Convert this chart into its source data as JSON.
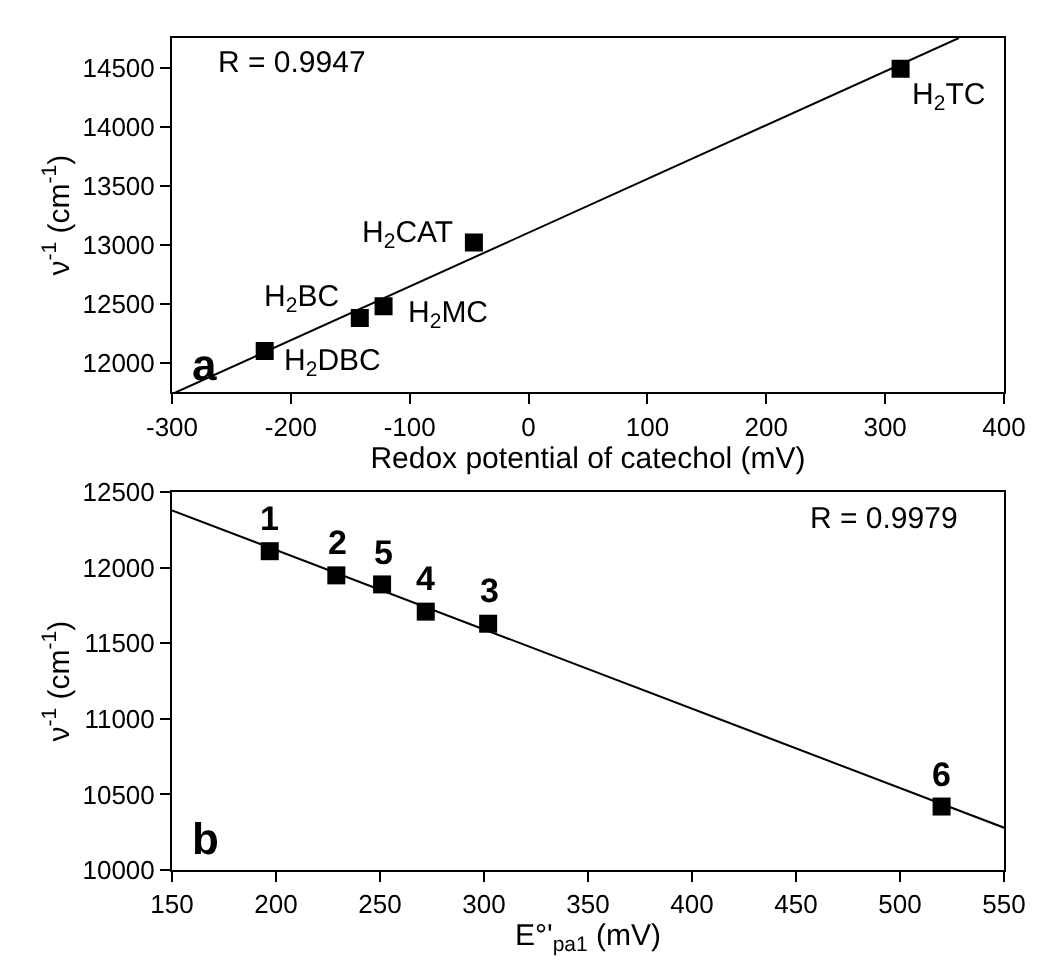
{
  "chart_data": [
    {
      "type": "scatter",
      "xlabel": "Redox potential of catechol (mV)",
      "ylabel": "ν$^{-1}$ (cm$^{-1}$)",
      "xlim": [
        -300,
        400
      ],
      "xticks": [
        -300,
        -200,
        -100,
        0,
        100,
        200,
        300,
        400
      ],
      "ylim": [
        11750,
        14750
      ],
      "yticks": [
        12000,
        12500,
        13000,
        13500,
        14000,
        14500
      ],
      "series": [
        {
          "color": "#000000",
          "marker": "square",
          "x": [
            -222,
            -142,
            -122,
            -46,
            313
          ],
          "values": [
            12100,
            12380,
            12480,
            13020,
            14490
          ]
        },
        {
          "type": "line",
          "marker": "none",
          "color": "#000000",
          "x": [
            -297,
            362
          ],
          "values": [
            11750,
            14750
          ]
        }
      ],
      "annotations": [
        "R = 0.9947",
        "a",
        {
          "text": "H$_{2}$DBC",
          "x": -222,
          "y": 12100
        },
        {
          "text": "H$_{2}$BC",
          "x": -142,
          "y": 12380
        },
        {
          "text": "H$_{2}$MC",
          "x": -122,
          "y": 12480
        },
        {
          "text": "H$_{2}$CAT",
          "x": -46,
          "y": 13020
        },
        {
          "text": "H$_{2}$TC",
          "x": 313,
          "y": 14490
        }
      ]
    },
    {
      "type": "scatter",
      "xlabel": "E°'$_{pa1}$ (mV)",
      "ylabel": "ν$^{-1}$ (cm$^{-1}$)",
      "xlim": [
        150,
        550
      ],
      "xticks": [
        150,
        200,
        250,
        300,
        350,
        400,
        450,
        500,
        550
      ],
      "ylim": [
        10000,
        12500
      ],
      "yticks": [
        10000,
        10500,
        11000,
        11500,
        12000,
        12500
      ],
      "series": [
        {
          "color": "#000000",
          "marker": "square",
          "x": [
            197,
            229,
            251,
            272,
            302,
            520
          ],
          "values": [
            12110,
            11950,
            11890,
            11710,
            11630,
            10420
          ]
        },
        {
          "type": "line",
          "marker": "none",
          "color": "#000000",
          "x": [
            150,
            550
          ],
          "values": [
            12380,
            10280
          ]
        }
      ],
      "annotations": [
        "R = 0.9979",
        "b",
        {
          "text": "1",
          "x": 197,
          "y": 12110
        },
        {
          "text": "2",
          "x": 229,
          "y": 11950
        },
        {
          "text": "5",
          "x": 251,
          "y": 11890
        },
        {
          "text": "4",
          "x": 272,
          "y": 11710
        },
        {
          "text": "3",
          "x": 302,
          "y": 11630
        },
        {
          "text": "6",
          "x": 520,
          "y": 10420
        }
      ]
    }
  ]
}
